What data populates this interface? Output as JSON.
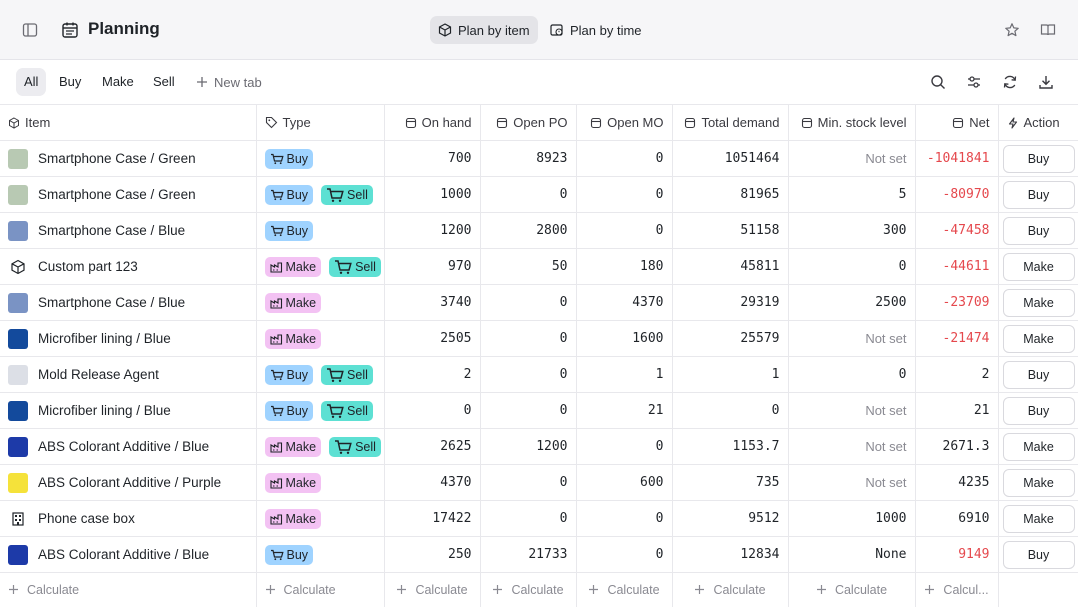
{
  "header": {
    "title": "Planning",
    "views": [
      "Plan by item",
      "Plan by time"
    ]
  },
  "tabs": {
    "items": [
      "All",
      "Buy",
      "Make",
      "Sell"
    ],
    "new_tab": "New tab"
  },
  "table": {
    "columns": [
      "Item",
      "Type",
      "On hand",
      "Open PO",
      "Open MO",
      "Total demand",
      "Min. stock level",
      "Net",
      "Action"
    ],
    "rows": [
      {
        "item": "Smartphone Case / Green",
        "thumb": "#b8c9b3",
        "types": [
          "Buy"
        ],
        "on_hand": "700",
        "open_po": "8923",
        "open_mo": "0",
        "total_demand": "1051464",
        "min_stock": "Not set",
        "net": "-1041841",
        "action": "Buy"
      },
      {
        "item": "Smartphone Case / Green",
        "thumb": "#b8c9b3",
        "types": [
          "Buy",
          "Sell"
        ],
        "on_hand": "1000",
        "open_po": "0",
        "open_mo": "0",
        "total_demand": "81965",
        "min_stock": "5",
        "net": "-80970",
        "action": "Buy"
      },
      {
        "item": "Smartphone Case / Blue",
        "thumb": "#7a93c4",
        "types": [
          "Buy"
        ],
        "on_hand": "1200",
        "open_po": "2800",
        "open_mo": "0",
        "total_demand": "51158",
        "min_stock": "300",
        "net": "-47458",
        "action": "Buy"
      },
      {
        "item": "Custom part 123",
        "thumb": "box",
        "types": [
          "Make",
          "Sell"
        ],
        "on_hand": "970",
        "open_po": "50",
        "open_mo": "180",
        "total_demand": "45811",
        "min_stock": "0",
        "net": "-44611",
        "action": "Make"
      },
      {
        "item": "Smartphone Case / Blue",
        "thumb": "#7a93c4",
        "types": [
          "Make"
        ],
        "on_hand": "3740",
        "open_po": "0",
        "open_mo": "4370",
        "total_demand": "29319",
        "min_stock": "2500",
        "net": "-23709",
        "action": "Make"
      },
      {
        "item": "Microfiber lining / Blue",
        "thumb": "#134a9c",
        "types": [
          "Make"
        ],
        "on_hand": "2505",
        "open_po": "0",
        "open_mo": "1600",
        "total_demand": "25579",
        "min_stock": "Not set",
        "net": "-21474",
        "action": "Make"
      },
      {
        "item": "Mold Release Agent",
        "thumb": "#dcdfe6",
        "types": [
          "Buy",
          "Sell"
        ],
        "on_hand": "2",
        "open_po": "0",
        "open_mo": "1",
        "total_demand": "1",
        "min_stock": "0",
        "net": "2",
        "action": "Buy"
      },
      {
        "item": "Microfiber lining / Blue",
        "thumb": "#134a9c",
        "types": [
          "Buy",
          "Sell"
        ],
        "on_hand": "0",
        "open_po": "0",
        "open_mo": "21",
        "total_demand": "0",
        "min_stock": "Not set",
        "net": "21",
        "action": "Buy"
      },
      {
        "item": "ABS Colorant Additive / Blue",
        "thumb": "#1d3aa8",
        "types": [
          "Make",
          "Sell"
        ],
        "on_hand": "2625",
        "open_po": "1200",
        "open_mo": "0",
        "total_demand": "1153.7",
        "min_stock": "Not set",
        "net": "2671.3",
        "action": "Make"
      },
      {
        "item": "ABS Colorant Additive / Purple",
        "thumb": "#f5e23a",
        "types": [
          "Make"
        ],
        "on_hand": "4370",
        "open_po": "0",
        "open_mo": "600",
        "total_demand": "735",
        "min_stock": "Not set",
        "net": "4235",
        "action": "Make"
      },
      {
        "item": "Phone case box",
        "thumb": "building",
        "types": [
          "Make"
        ],
        "on_hand": "17422",
        "open_po": "0",
        "open_mo": "0",
        "total_demand": "9512",
        "min_stock": "1000",
        "net": "6910",
        "action": "Make"
      },
      {
        "item": "ABS Colorant Additive / Blue",
        "thumb": "#1d3aa8",
        "types": [
          "Buy"
        ],
        "on_hand": "250",
        "open_po": "21733",
        "open_mo": "0",
        "total_demand": "12834",
        "min_stock": "None",
        "net": "9149",
        "action": "Buy"
      }
    ],
    "footer": [
      "Calculate",
      "Calculate",
      "Calculate",
      "Calculate",
      "Calculate",
      "Calculate",
      "Calculate",
      "Calcul..."
    ]
  },
  "colors": {
    "negative": "#e5484d",
    "buy": "#9fd3ff",
    "make": "#f3c2f3",
    "sell": "#5de0d3"
  }
}
